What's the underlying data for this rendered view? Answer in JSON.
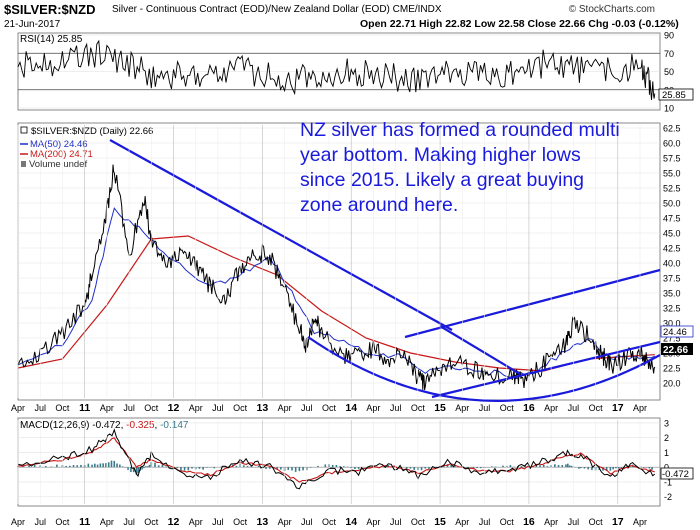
{
  "header": {
    "symbol": "$SILVER:$NZD",
    "description": "Silver - Continuous Contract (EOD)/New Zealand Dollar (EOD) CME/INDX",
    "date": "21-Jun-2017",
    "open_label": "Open",
    "open": "22.71",
    "high_label": "High",
    "high": "22.82",
    "low_label": "Low",
    "low": "22.58",
    "close_label": "Close",
    "close": "22.66",
    "chg_label": "Chg",
    "chg": "-0.03 (-0.12%)",
    "credit": "© StockCharts.com"
  },
  "colors": {
    "price": "#000000",
    "ma50": "#1f2fc8",
    "ma200": "#c81818",
    "trendline": "#1a1adc",
    "macd": "#000000",
    "signal": "#c81818",
    "histogram": "#3a7a8a"
  },
  "annotation": "NZ silver has formed a rounded multi year bottom. Making higher lows since 2015. Likely a great buying zone around here.",
  "legend": {
    "main": "$SILVER:$NZD (Daily) 22.66",
    "ma50": "MA(50) 24.46",
    "ma200": "MA(200) 24.71",
    "volume": "Volume undef"
  },
  "chart_data": [
    {
      "type": "line",
      "panel": "RSI",
      "title": "RSI(14) 25.85",
      "yticks": [
        10,
        30,
        50,
        70,
        90
      ],
      "ylim": [
        10,
        90
      ],
      "current_value": "25.85",
      "series": [
        {
          "name": "RSI(14)",
          "x": [
            "2010-04",
            "2010-10",
            "2011-04",
            "2011-10",
            "2012-04",
            "2012-10",
            "2013-04",
            "2013-10",
            "2014-04",
            "2014-10",
            "2015-04",
            "2015-10",
            "2016-04",
            "2016-10",
            "2017-04",
            "2017-06"
          ],
          "values": [
            55,
            62,
            70,
            45,
            48,
            55,
            38,
            50,
            48,
            40,
            50,
            45,
            62,
            48,
            55,
            26
          ]
        }
      ]
    },
    {
      "type": "line",
      "panel": "price",
      "title": "$SILVER:$NZD (Daily) 22.66",
      "yticks": [
        20.0,
        22.5,
        25.0,
        27.5,
        30.0,
        32.5,
        35.0,
        37.5,
        40.0,
        42.5,
        45.0,
        47.5,
        50.0,
        52.5,
        55.0,
        57.5,
        60.0,
        62.5
      ],
      "ylim": [
        17.5,
        63
      ],
      "x_tick_labels": [
        "Apr",
        "Jul",
        "Oct",
        "11",
        "Apr",
        "Jul",
        "Oct",
        "12",
        "Apr",
        "Jul",
        "Oct",
        "13",
        "Apr",
        "Jul",
        "Oct",
        "14",
        "Apr",
        "Jul",
        "Oct",
        "15",
        "Apr",
        "Jul",
        "Oct",
        "16",
        "Apr",
        "Jul",
        "Oct",
        "17",
        "Apr"
      ],
      "last_labels": [
        "24.46",
        "22.66"
      ],
      "series": [
        {
          "name": "$SILVER:$NZD",
          "x": [
            "2010-04",
            "2010-07",
            "2010-10",
            "2011-01",
            "2011-02",
            "2011-04",
            "2011-05",
            "2011-07",
            "2011-09",
            "2011-10",
            "2011-12",
            "2012-02",
            "2012-04",
            "2012-06",
            "2012-08",
            "2012-10",
            "2012-12",
            "2013-02",
            "2013-04",
            "2013-06",
            "2013-07",
            "2013-08",
            "2013-09",
            "2013-12",
            "2014-02",
            "2014-04",
            "2014-06",
            "2014-08",
            "2014-10",
            "2014-11",
            "2015-01",
            "2015-03",
            "2015-06",
            "2015-08",
            "2015-11",
            "2015-12",
            "2016-02",
            "2016-04",
            "2016-06",
            "2016-07",
            "2016-09",
            "2016-11",
            "2016-12",
            "2017-02",
            "2017-04",
            "2017-05",
            "2017-06"
          ],
          "values": [
            23.0,
            24.5,
            28.5,
            33.0,
            38.0,
            49.0,
            56.0,
            41.0,
            51.0,
            44.0,
            39.0,
            42.0,
            40.0,
            36.0,
            34.0,
            39.0,
            42.0,
            41.0,
            36.0,
            29.0,
            26.0,
            31.0,
            28.5,
            24.5,
            25.0,
            25.5,
            24.0,
            25.0,
            21.0,
            19.5,
            22.5,
            23.5,
            22.0,
            21.5,
            21.0,
            20.5,
            22.0,
            24.0,
            26.5,
            29.5,
            28.0,
            24.5,
            23.0,
            24.0,
            25.5,
            23.5,
            22.66
          ]
        },
        {
          "name": "MA(50)",
          "x": [
            "2010-04",
            "2010-10",
            "2011-02",
            "2011-05",
            "2011-09",
            "2012-01",
            "2012-06",
            "2012-10",
            "2013-02",
            "2013-05",
            "2013-08",
            "2013-12",
            "2014-04",
            "2014-08",
            "2014-11",
            "2015-03",
            "2015-07",
            "2015-11",
            "2016-02",
            "2016-06",
            "2016-09",
            "2016-12",
            "2017-03",
            "2017-06"
          ],
          "values": [
            23.0,
            26.5,
            34.0,
            49.0,
            45.0,
            40.5,
            36.0,
            38.0,
            41.0,
            35.0,
            28.5,
            27.0,
            24.5,
            24.5,
            22.0,
            22.5,
            22.0,
            21.0,
            22.0,
            25.5,
            27.5,
            24.0,
            24.5,
            24.46
          ]
        },
        {
          "name": "MA(200)",
          "x": [
            "2010-04",
            "2010-10",
            "2011-04",
            "2011-10",
            "2012-03",
            "2012-09",
            "2013-03",
            "2013-09",
            "2014-03",
            "2014-09",
            "2015-03",
            "2015-09",
            "2016-03",
            "2016-09",
            "2017-03",
            "2017-06"
          ],
          "values": [
            22.5,
            24.0,
            33.0,
            44.0,
            44.5,
            41.0,
            38.0,
            32.0,
            27.5,
            25.0,
            23.5,
            22.5,
            22.0,
            24.0,
            24.5,
            24.71
          ]
        }
      ]
    },
    {
      "type": "line",
      "panel": "MACD",
      "title": "MACD(12,26,9) -0.472, -0.325, -0.147",
      "title_parts": [
        "MACD(12,26,9)",
        "-0.472",
        "-0.325",
        "-0.147"
      ],
      "yticks": [
        -2,
        -1,
        0,
        1,
        2,
        3
      ],
      "ylim": [
        -2.5,
        3.2
      ],
      "current_value": "-0.472",
      "series": [
        {
          "name": "MACD",
          "x": [
            "2010-04",
            "2010-10",
            "2011-02",
            "2011-05",
            "2011-08",
            "2011-10",
            "2012-02",
            "2012-06",
            "2012-10",
            "2013-02",
            "2013-06",
            "2013-10",
            "2014-02",
            "2014-06",
            "2014-10",
            "2015-02",
            "2015-06",
            "2015-10",
            "2016-02",
            "2016-06",
            "2016-08",
            "2016-12",
            "2017-03",
            "2017-06"
          ],
          "values": [
            0.2,
            0.6,
            1.2,
            2.4,
            -0.5,
            0.8,
            -0.4,
            -0.6,
            0.5,
            0.0,
            -1.3,
            -0.2,
            -0.3,
            0.2,
            -0.6,
            0.4,
            -0.3,
            -0.2,
            0.2,
            1.0,
            0.8,
            -0.6,
            0.2,
            -0.472
          ]
        },
        {
          "name": "Signal",
          "x": [
            "2010-04",
            "2010-10",
            "2011-02",
            "2011-05",
            "2011-08",
            "2011-10",
            "2012-02",
            "2012-06",
            "2012-10",
            "2013-02",
            "2013-06",
            "2013-10",
            "2014-02",
            "2014-06",
            "2014-10",
            "2015-02",
            "2015-06",
            "2015-10",
            "2016-02",
            "2016-06",
            "2016-08",
            "2016-12",
            "2017-03",
            "2017-06"
          ],
          "values": [
            0.1,
            0.5,
            1.0,
            2.0,
            0.0,
            0.5,
            -0.2,
            -0.5,
            0.3,
            0.1,
            -1.0,
            -0.4,
            -0.2,
            0.1,
            -0.4,
            0.2,
            -0.2,
            -0.3,
            0.1,
            0.8,
            0.9,
            -0.4,
            0.1,
            -0.325
          ]
        }
      ]
    }
  ]
}
